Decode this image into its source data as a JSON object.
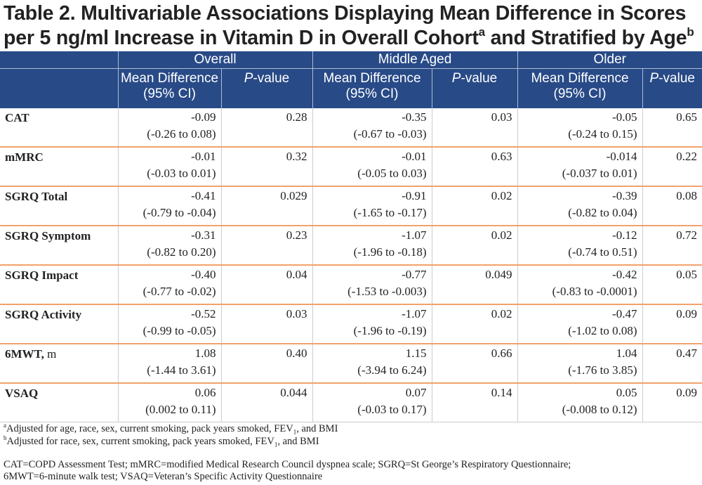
{
  "title": {
    "line1": "Table 2. Multivariable Associations Displaying Mean Difference in Scores",
    "line2_prefix": "per 5 ng/ml Increase in Vitamin D in Overall Cohort",
    "line2_sup1": "a",
    "line2_middle": " and Stratified by Age",
    "line2_sup2": "b"
  },
  "header": {
    "groups": [
      "Overall",
      "Middle Aged",
      "Older"
    ],
    "mean_diff_line1": "Mean Difference",
    "mean_diff_line2": "(95% CI)",
    "p_italic": "P",
    "p_rest": "-value"
  },
  "rows": [
    {
      "label": "CAT",
      "unit": "",
      "cells": [
        {
          "md": "-0.09",
          "ci": "(-0.26 to 0.08)",
          "p": "0.28"
        },
        {
          "md": "-0.35",
          "ci": "(-0.67 to -0.03)",
          "p": "0.03"
        },
        {
          "md": "-0.05",
          "ci": "(-0.24 to 0.15)",
          "p": "0.65"
        }
      ]
    },
    {
      "label": "mMRC",
      "unit": "",
      "cells": [
        {
          "md": "-0.01",
          "ci": "(-0.03 to 0.01)",
          "p": "0.32"
        },
        {
          "md": "-0.01",
          "ci": "(-0.05 to 0.03)",
          "p": "0.63"
        },
        {
          "md": "-0.014",
          "ci": "(-0.037 to 0.01)",
          "p": "0.22"
        }
      ]
    },
    {
      "label": "SGRQ Total",
      "unit": "",
      "cells": [
        {
          "md": "-0.41",
          "ci": "(-0.79 to -0.04)",
          "p": "0.029"
        },
        {
          "md": "-0.91",
          "ci": "(-1.65 to -0.17)",
          "p": "0.02"
        },
        {
          "md": "-0.39",
          "ci": "(-0.82 to 0.04)",
          "p": "0.08"
        }
      ]
    },
    {
      "label": "SGRQ Symptom",
      "unit": "",
      "cells": [
        {
          "md": "-0.31",
          "ci": "(-0.82 to 0.20)",
          "p": "0.23"
        },
        {
          "md": "-1.07",
          "ci": "(-1.96 to -0.18)",
          "p": "0.02"
        },
        {
          "md": "-0.12",
          "ci": "(-0.74 to 0.51)",
          "p": "0.72"
        }
      ]
    },
    {
      "label": "SGRQ Impact",
      "unit": "",
      "cells": [
        {
          "md": "-0.40",
          "ci": "(-0.77 to -0.02)",
          "p": "0.04"
        },
        {
          "md": "-0.77",
          "ci": "(-1.53 to -0.003)",
          "p": "0.049"
        },
        {
          "md": "-0.42",
          "ci": "(-0.83 to -0.0001)",
          "p": "0.05"
        }
      ]
    },
    {
      "label": "SGRQ Activity",
      "unit": "",
      "cells": [
        {
          "md": "-0.52",
          "ci": "(-0.99 to -0.05)",
          "p": "0.03"
        },
        {
          "md": "-1.07",
          "ci": "(-1.96 to -0.19)",
          "p": "0.02"
        },
        {
          "md": "-0.47",
          "ci": "(-1.02 to 0.08)",
          "p": "0.09"
        }
      ]
    },
    {
      "label": "6MWT,",
      "unit": " m",
      "cells": [
        {
          "md": "1.08",
          "ci": "(-1.44 to 3.61)",
          "p": "0.40"
        },
        {
          "md": "1.15",
          "ci": "(-3.94 to 6.24)",
          "p": "0.66"
        },
        {
          "md": "1.04",
          "ci": "(-1.76 to 3.85)",
          "p": "0.47"
        }
      ]
    },
    {
      "label": "VSAQ",
      "unit": "",
      "cells": [
        {
          "md": "0.06",
          "ci": "(0.002 to 0.11)",
          "p": "0.044"
        },
        {
          "md": "0.07",
          "ci": "(-0.03 to 0.17)",
          "p": "0.14"
        },
        {
          "md": "0.05",
          "ci": "(-0.008 to 0.12)",
          "p": "0.09"
        }
      ]
    }
  ],
  "footnotes": {
    "a_mark": "a",
    "a_text": "Adjusted for age, race, sex, current smoking, pack years smoked, FEV",
    "a_sub": "1",
    "a_end": ", and BMI",
    "b_mark": "b",
    "b_text": "Adjusted for race, sex, current smoking, pack years smoked, FEV",
    "b_sub": "1",
    "b_end": ", and BMI",
    "abbrev_line1": "CAT=COPD Assessment Test; mMRC=modified Medical Research Council dyspnea scale; SGRQ=St George’s Respiratory Questionnaire;",
    "abbrev_line2": "6MWT=6-minute walk test; VSAQ=Veteran’s Specific Activity Questionnaire"
  },
  "colors": {
    "header_bg": "#284a87",
    "row_divider": "#f2a16c"
  }
}
